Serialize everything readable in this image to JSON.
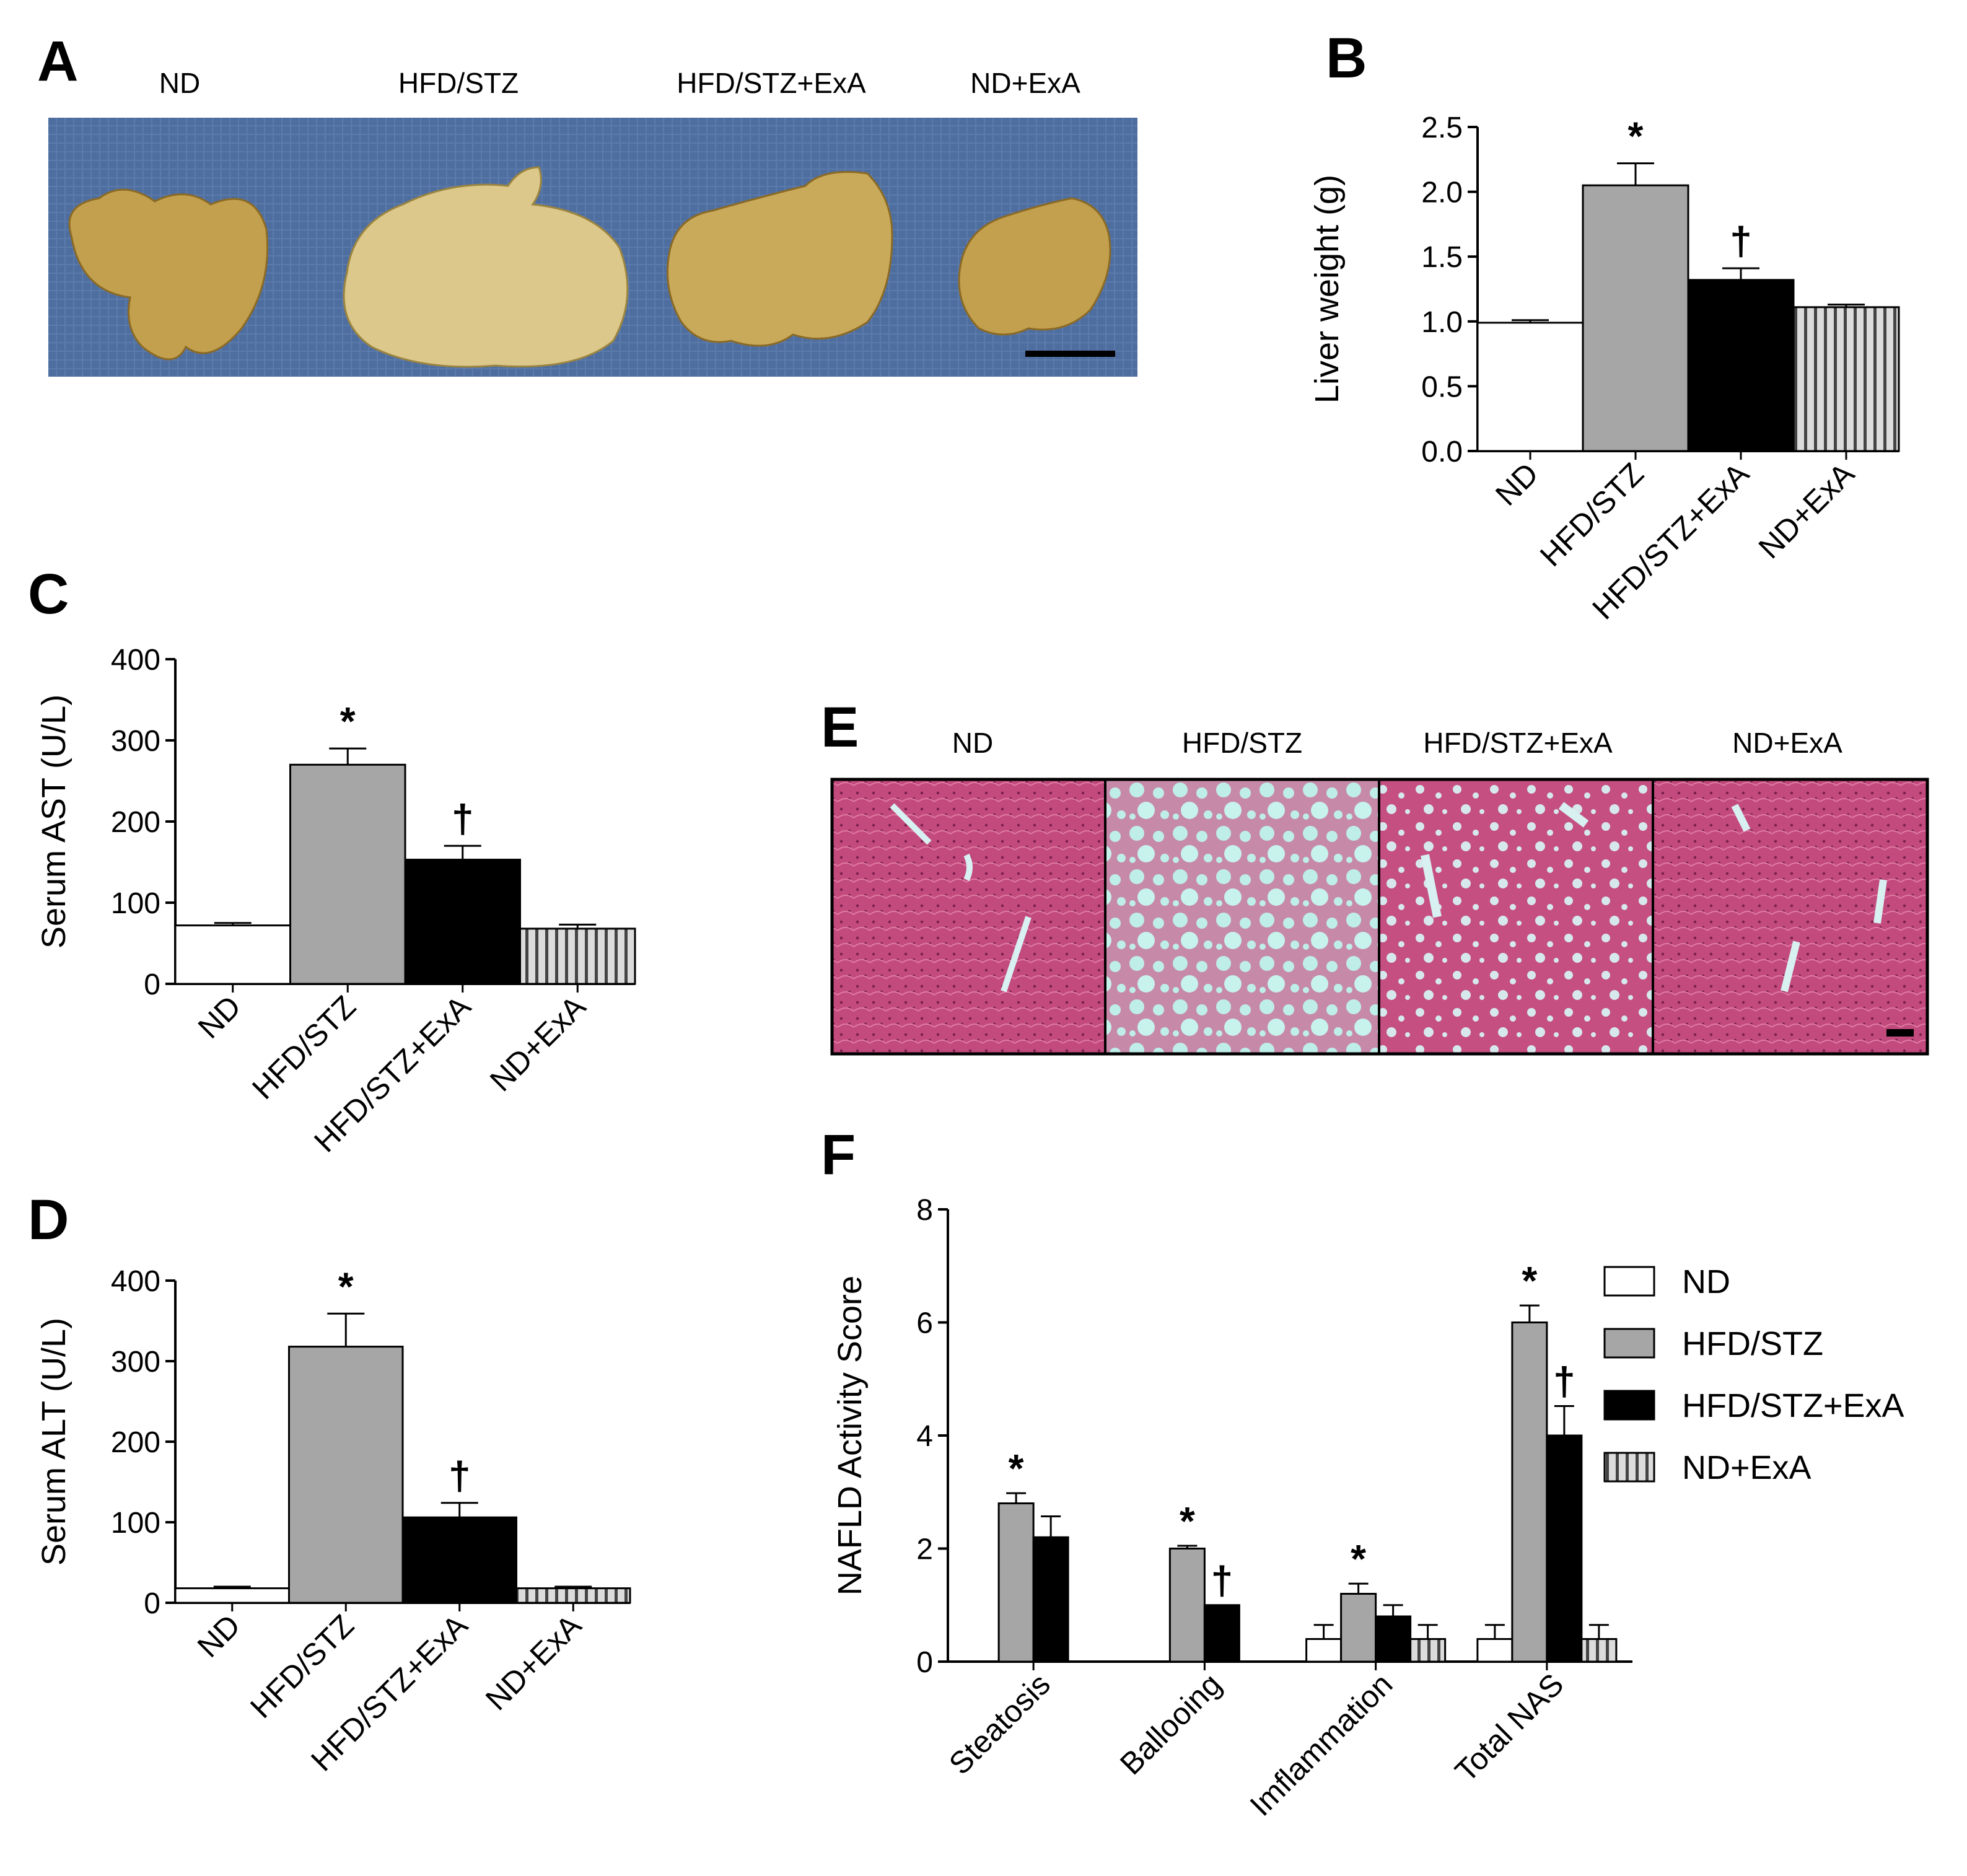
{
  "panel_labels": {
    "a": "A",
    "b": "B",
    "c": "C",
    "d": "D",
    "e": "E",
    "f": "F"
  },
  "groups": [
    "ND",
    "HFD/STZ",
    "HFD/STZ+ExA",
    "ND+ExA"
  ],
  "colors": {
    "nd": "#ffffff",
    "hfd": "#a6a6a6",
    "hfd_exa": "#000000",
    "nd_exa": "#d9d9d9",
    "photo_bg": "#4f6ea0",
    "liver": "#c2a04e",
    "he_tissue": "#c04c7e",
    "he_vessel": "#bfeeea"
  },
  "chart_data": [
    {
      "panel": "B",
      "type": "bar",
      "categories": [
        "ND",
        "HFD/STZ",
        "HFD/STZ+ExA",
        "ND+ExA"
      ],
      "values": [
        0.99,
        2.05,
        1.32,
        1.11
      ],
      "errors": [
        0.02,
        0.17,
        0.09,
        0.02
      ],
      "markers": [
        "",
        "*",
        "†",
        ""
      ],
      "ylabel": "Liver weight (g)",
      "ylim": [
        0,
        2.5
      ],
      "yticks": [
        "0.0",
        "0.5",
        "1.0",
        "1.5",
        "2.0",
        "2.5"
      ]
    },
    {
      "panel": "C",
      "type": "bar",
      "categories": [
        "ND",
        "HFD/STZ",
        "HFD/STZ+ExA",
        "ND+ExA"
      ],
      "values": [
        72,
        270,
        153,
        68
      ],
      "errors": [
        3,
        20,
        17,
        5
      ],
      "markers": [
        "",
        "*",
        "†",
        ""
      ],
      "ylabel": "Serum AST (U/L)",
      "ylim": [
        0,
        400
      ],
      "yticks": [
        "0",
        "100",
        "200",
        "300",
        "400"
      ]
    },
    {
      "panel": "D",
      "type": "bar",
      "categories": [
        "ND",
        "HFD/STZ",
        "HFD/STZ+ExA",
        "ND+ExA"
      ],
      "values": [
        18,
        318,
        106,
        18
      ],
      "errors": [
        2,
        41,
        18,
        2
      ],
      "markers": [
        "",
        "*",
        "†",
        ""
      ],
      "ylabel": "Serum ALT (U/L)",
      "ylim": [
        0,
        400
      ],
      "yticks": [
        "0",
        "100",
        "200",
        "300",
        "400"
      ]
    },
    {
      "panel": "F",
      "type": "bar",
      "categories": [
        "Steatosis",
        "Ballooing",
        "Imflammation",
        "Total NAS"
      ],
      "series": [
        {
          "name": "ND",
          "values": [
            0,
            0,
            0.4,
            0.4
          ],
          "errors": [
            0,
            0,
            0.25,
            0.25
          ],
          "markers": [
            "",
            "",
            "",
            ""
          ]
        },
        {
          "name": "HFD/STZ",
          "values": [
            2.8,
            2.0,
            1.2,
            6.0
          ],
          "errors": [
            0.18,
            0.05,
            0.18,
            0.3
          ],
          "markers": [
            "*",
            "*",
            "*",
            "*"
          ]
        },
        {
          "name": "HFD/STZ+ExA",
          "values": [
            2.2,
            1.0,
            0.8,
            4.0
          ],
          "errors": [
            0.37,
            0,
            0.2,
            0.52
          ],
          "markers": [
            "",
            "†",
            "",
            "†"
          ]
        },
        {
          "name": "ND+ExA",
          "values": [
            0,
            0,
            0.4,
            0.4
          ],
          "errors": [
            0,
            0,
            0.25,
            0.25
          ],
          "markers": [
            "",
            "",
            "",
            ""
          ]
        }
      ],
      "ylabel": "NAFLD Activity Score",
      "ylim": [
        0,
        8
      ],
      "yticks": [
        "0",
        "2",
        "4",
        "6",
        "8"
      ],
      "legend_placement": "right"
    }
  ],
  "panel_a": {
    "headers": [
      "ND",
      "HFD/STZ",
      "HFD/STZ+ExA",
      "ND+ExA"
    ]
  },
  "panel_e": {
    "headers": [
      "ND",
      "HFD/STZ",
      "HFD/STZ+ExA",
      "ND+ExA"
    ]
  }
}
